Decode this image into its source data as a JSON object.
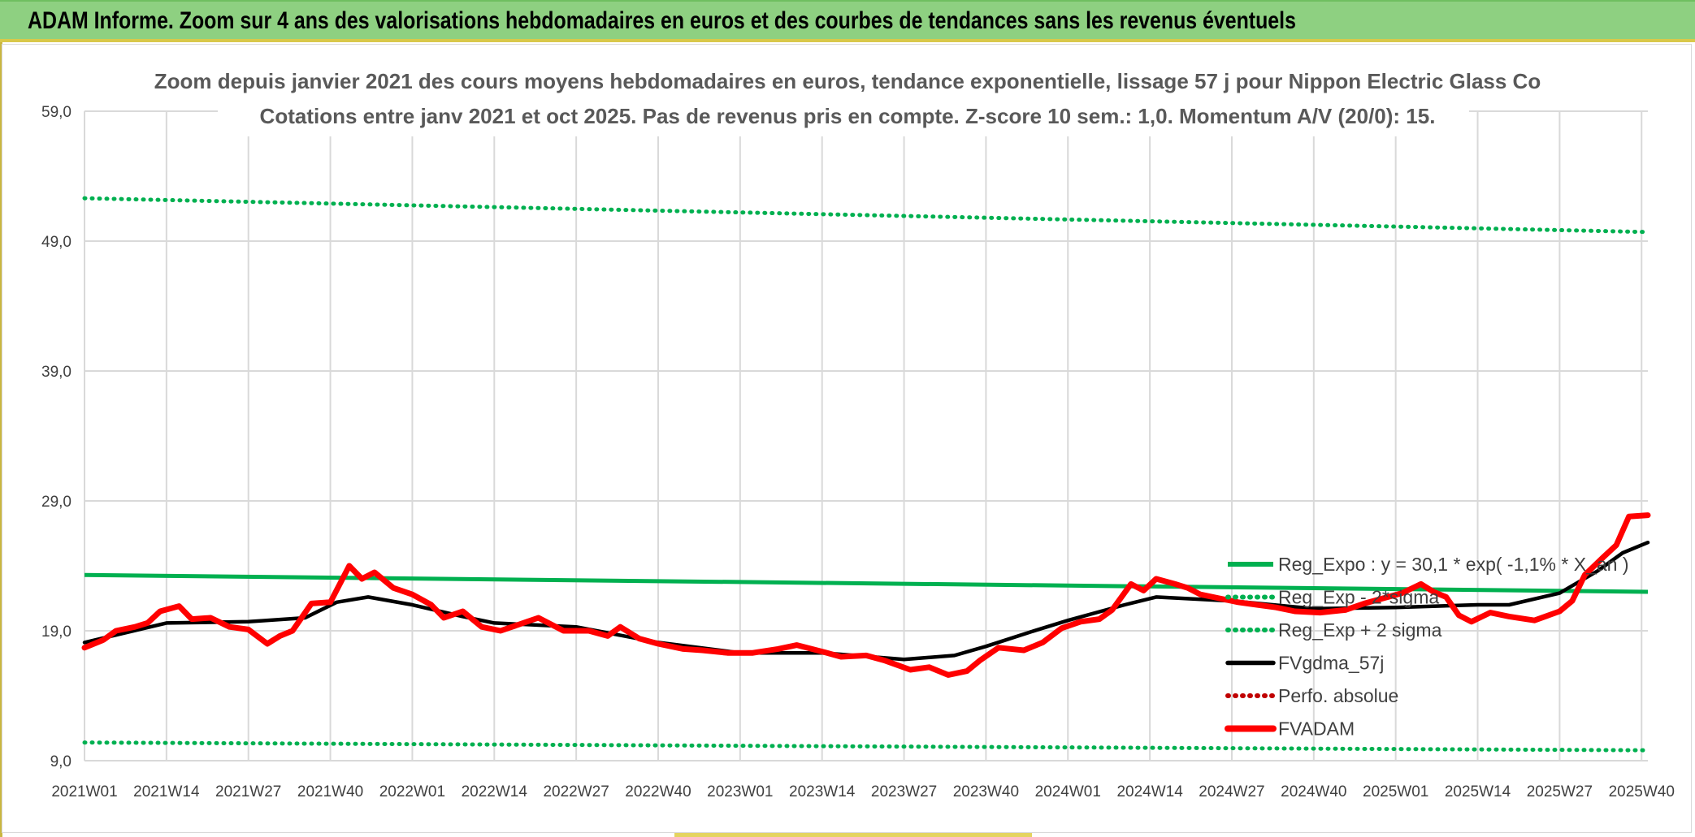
{
  "header": {
    "title": "ADAM Informe. Zoom sur 4 ans des valorisations hebdomadaires en euros et des courbes de tendances sans les revenus éventuels"
  },
  "colors": {
    "reg_expo": "#00b050",
    "fvgdma": "#000000",
    "fvadam": "#ff0000",
    "perfo": "#c00000",
    "grid": "#d9d9d9",
    "banner": "#8ed081"
  },
  "chart_data": {
    "type": "line",
    "title": "Zoom depuis janvier 2021 des cours moyens hebdomadaires en euros, tendance exponentielle, lissage 57 j pour Nippon Electric Glass Co",
    "subtitle": "Cotations entre janv 2021 et oct 2025. Pas de revenus pris en compte. Z-score 10 sem.: 1,0. Momentum A/V (20/0): 15.",
    "ylim": [
      9,
      59
    ],
    "yticks": [
      9,
      19,
      29,
      39,
      49,
      59
    ],
    "ytick_labels": [
      "9,0",
      "19,0",
      "29,0",
      "39,0",
      "49,0",
      "59,0"
    ],
    "x_tick_labels": [
      "2021W01",
      "2021W14",
      "2021W27",
      "2021W40",
      "2022W01",
      "2022W14",
      "2022W27",
      "2022W40",
      "2023W01",
      "2023W14",
      "2023W27",
      "2023W40",
      "2024W01",
      "2024W14",
      "2024W27",
      "2024W40",
      "2025W01",
      "2025W14",
      "2025W27",
      "2025W40"
    ],
    "n_weeks": 249,
    "legend_position": "right",
    "series": [
      {
        "name": "Reg_Expo : y = 30,1 * exp( -1,1% *  X_an )",
        "style": "solid",
        "color": "#00b050",
        "points": [
          [
            0,
            23.3
          ],
          [
            248,
            22.0
          ]
        ]
      },
      {
        "name": "Reg_Exp - 2*sigma",
        "style": "dotted",
        "color": "#00b050",
        "points": [
          [
            0,
            10.4
          ],
          [
            248,
            9.8
          ]
        ]
      },
      {
        "name": "Reg_Exp + 2 sigma",
        "style": "dotted",
        "color": "#00b050",
        "points": [
          [
            0,
            52.3
          ],
          [
            248,
            49.7
          ]
        ]
      },
      {
        "name": "FVgdma_57j",
        "style": "solid",
        "color": "#000000",
        "points": [
          [
            0,
            18.1
          ],
          [
            13,
            19.6
          ],
          [
            26,
            19.7
          ],
          [
            35,
            20.0
          ],
          [
            40,
            21.2
          ],
          [
            45,
            21.6
          ],
          [
            52,
            21.0
          ],
          [
            60,
            20.1
          ],
          [
            65,
            19.6
          ],
          [
            78,
            19.3
          ],
          [
            91,
            18.1
          ],
          [
            104,
            17.3
          ],
          [
            117,
            17.3
          ],
          [
            130,
            16.8
          ],
          [
            138,
            17.1
          ],
          [
            143,
            17.8
          ],
          [
            150,
            18.9
          ],
          [
            156,
            19.8
          ],
          [
            165,
            21.0
          ],
          [
            170,
            21.6
          ],
          [
            182,
            21.3
          ],
          [
            195,
            20.7
          ],
          [
            208,
            20.8
          ],
          [
            221,
            21.0
          ],
          [
            226,
            21.0
          ],
          [
            234,
            21.9
          ],
          [
            240,
            23.6
          ],
          [
            244,
            25.0
          ],
          [
            248,
            25.8
          ]
        ]
      },
      {
        "name": "Perfo. absolue",
        "style": "dotted",
        "color": "#c00000",
        "points": []
      },
      {
        "name": "FVADAM",
        "style": "solid",
        "color": "#ff0000",
        "points": [
          [
            0,
            17.7
          ],
          [
            3,
            18.3
          ],
          [
            5,
            19.0
          ],
          [
            8,
            19.3
          ],
          [
            10,
            19.6
          ],
          [
            12,
            20.5
          ],
          [
            15,
            20.9
          ],
          [
            17,
            19.9
          ],
          [
            20,
            20.0
          ],
          [
            23,
            19.3
          ],
          [
            26,
            19.1
          ],
          [
            29,
            18.0
          ],
          [
            31,
            18.6
          ],
          [
            33,
            19.0
          ],
          [
            36,
            21.1
          ],
          [
            39,
            21.2
          ],
          [
            42,
            24.0
          ],
          [
            44,
            23.0
          ],
          [
            46,
            23.5
          ],
          [
            49,
            22.3
          ],
          [
            52,
            21.8
          ],
          [
            55,
            21.0
          ],
          [
            57,
            20.0
          ],
          [
            60,
            20.5
          ],
          [
            63,
            19.3
          ],
          [
            66,
            19.0
          ],
          [
            69,
            19.5
          ],
          [
            72,
            20.0
          ],
          [
            76,
            19.0
          ],
          [
            80,
            19.0
          ],
          [
            83,
            18.6
          ],
          [
            85,
            19.3
          ],
          [
            88,
            18.4
          ],
          [
            91,
            18.0
          ],
          [
            95,
            17.6
          ],
          [
            98,
            17.5
          ],
          [
            102,
            17.3
          ],
          [
            106,
            17.3
          ],
          [
            110,
            17.6
          ],
          [
            113,
            17.9
          ],
          [
            117,
            17.4
          ],
          [
            120,
            17.0
          ],
          [
            124,
            17.1
          ],
          [
            127,
            16.7
          ],
          [
            131,
            16.0
          ],
          [
            134,
            16.2
          ],
          [
            137,
            15.6
          ],
          [
            140,
            15.9
          ],
          [
            142,
            16.7
          ],
          [
            145,
            17.7
          ],
          [
            149,
            17.5
          ],
          [
            152,
            18.1
          ],
          [
            155,
            19.2
          ],
          [
            158,
            19.7
          ],
          [
            161,
            19.9
          ],
          [
            163,
            20.6
          ],
          [
            166,
            22.6
          ],
          [
            168,
            22.1
          ],
          [
            170,
            23.0
          ],
          [
            173,
            22.6
          ],
          [
            175,
            22.3
          ],
          [
            177,
            21.8
          ],
          [
            180,
            21.5
          ],
          [
            183,
            21.2
          ],
          [
            186,
            21.0
          ],
          [
            189,
            20.8
          ],
          [
            192,
            20.5
          ],
          [
            196,
            20.4
          ],
          [
            200,
            20.6
          ],
          [
            203,
            21.1
          ],
          [
            206,
            21.5
          ],
          [
            209,
            21.9
          ],
          [
            212,
            22.6
          ],
          [
            214,
            22.0
          ],
          [
            216,
            21.6
          ],
          [
            218,
            20.2
          ],
          [
            220,
            19.7
          ],
          [
            223,
            20.4
          ],
          [
            226,
            20.1
          ],
          [
            230,
            19.8
          ],
          [
            234,
            20.5
          ],
          [
            236,
            21.3
          ],
          [
            238,
            23.3
          ],
          [
            241,
            24.7
          ],
          [
            243,
            25.6
          ],
          [
            245,
            27.8
          ],
          [
            248,
            27.9
          ]
        ]
      }
    ]
  }
}
